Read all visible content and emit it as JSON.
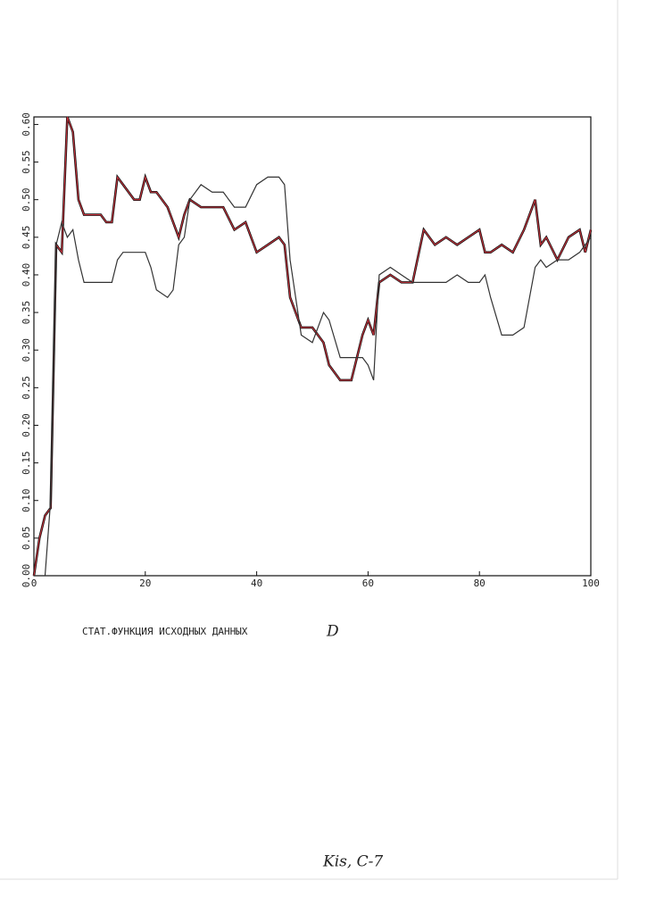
{
  "chart_data": {
    "type": "line",
    "title": "СТАТ.ФУНКЦИЯ ИСХОДНЫХ ДАННЫХ",
    "annotations": [
      "D",
      "Kis,  C-7"
    ],
    "x": [
      0,
      1,
      2,
      3,
      4,
      5,
      6,
      7,
      8,
      9,
      10,
      12,
      13,
      14,
      15,
      16,
      18,
      19,
      20,
      21,
      22,
      24,
      25,
      26,
      27,
      28,
      30,
      32,
      34,
      36,
      38,
      40,
      42,
      44,
      45,
      46,
      48,
      50,
      52,
      53,
      55,
      57,
      59,
      60,
      61,
      62,
      64,
      66,
      68,
      70,
      72,
      74,
      76,
      78,
      80,
      81,
      82,
      84,
      86,
      88,
      90,
      91,
      92,
      94,
      96,
      98,
      99,
      100
    ],
    "series": [
      {
        "color": "#111111",
        "values": [
          0,
          0.05,
          0.08,
          0.09,
          0.44,
          0.43,
          0.61,
          0.59,
          0.5,
          0.48,
          0.48,
          0.48,
          0.47,
          0.47,
          0.53,
          0.52,
          0.5,
          0.5,
          0.53,
          0.51,
          0.51,
          0.49,
          0.47,
          0.45,
          0.48,
          0.5,
          0.49,
          0.49,
          0.49,
          0.46,
          0.47,
          0.43,
          0.44,
          0.45,
          0.44,
          0.37,
          0.33,
          0.33,
          0.31,
          0.28,
          0.26,
          0.26,
          0.32,
          0.34,
          0.32,
          0.39,
          0.4,
          0.39,
          0.39,
          0.46,
          0.44,
          0.45,
          0.44,
          0.45,
          0.46,
          0.43,
          0.43,
          0.44,
          0.43,
          0.46,
          0.5,
          0.44,
          0.45,
          0.42,
          0.45,
          0.46,
          0.43,
          0.46
        ]
      },
      {
        "color": "#c8323c",
        "values": [
          0,
          0.05,
          0.08,
          0.09,
          0.44,
          0.43,
          0.61,
          0.59,
          0.5,
          0.48,
          0.48,
          0.48,
          0.47,
          0.47,
          0.53,
          0.52,
          0.5,
          0.5,
          0.53,
          0.51,
          0.51,
          0.49,
          0.47,
          0.45,
          0.48,
          0.5,
          0.49,
          0.49,
          0.49,
          0.46,
          0.47,
          0.43,
          0.44,
          0.45,
          0.44,
          0.37,
          0.33,
          0.33,
          0.31,
          0.28,
          0.26,
          0.26,
          0.32,
          0.34,
          0.32,
          0.39,
          0.4,
          0.39,
          0.39,
          0.46,
          0.44,
          0.45,
          0.44,
          0.45,
          0.46,
          0.43,
          0.43,
          0.44,
          0.43,
          0.46,
          0.5,
          0.44,
          0.45,
          0.42,
          0.45,
          0.46,
          0.43,
          0.46
        ]
      },
      {
        "color": "#333333",
        "values": [
          0,
          0,
          0,
          0.1,
          0.44,
          0.47,
          0.45,
          0.46,
          0.42,
          0.39,
          0.39,
          0.39,
          0.39,
          0.39,
          0.42,
          0.43,
          0.43,
          0.43,
          0.43,
          0.41,
          0.38,
          0.37,
          0.38,
          0.44,
          0.45,
          0.5,
          0.52,
          0.51,
          0.51,
          0.49,
          0.49,
          0.52,
          0.53,
          0.53,
          0.52,
          0.42,
          0.32,
          0.31,
          0.35,
          0.34,
          0.29,
          0.29,
          0.29,
          0.28,
          0.26,
          0.4,
          0.41,
          0.4,
          0.39,
          0.39,
          0.39,
          0.39,
          0.4,
          0.39,
          0.39,
          0.4,
          0.37,
          0.32,
          0.32,
          0.33,
          0.41,
          0.42,
          0.41,
          0.42,
          0.42,
          0.43,
          0.44,
          0.45
        ]
      }
    ],
    "xlim": [
      0,
      100
    ],
    "xticks": [
      0,
      20,
      40,
      60,
      80,
      100
    ],
    "ylim": [
      0,
      0.61
    ],
    "yticks": [
      {
        "value": 0,
        "label": "0.00"
      },
      {
        "value": 0.05,
        "label": "0.05"
      },
      {
        "value": 0.1,
        "label": "0.10"
      },
      {
        "value": 0.15,
        "label": "0.15"
      },
      {
        "value": 0.2,
        "label": "0.20"
      },
      {
        "value": 0.25,
        "label": "0.25"
      },
      {
        "value": 0.3,
        "label": "0.30"
      },
      {
        "value": 0.35,
        "label": "0.35"
      },
      {
        "value": 0.4,
        "label": "0.40"
      },
      {
        "value": 0.45,
        "label": "0.45"
      },
      {
        "value": 0.5,
        "label": "0.50"
      },
      {
        "value": 0.55,
        "label": "0.55"
      },
      {
        "value": 0.6,
        "label": "0.60"
      }
    ]
  }
}
